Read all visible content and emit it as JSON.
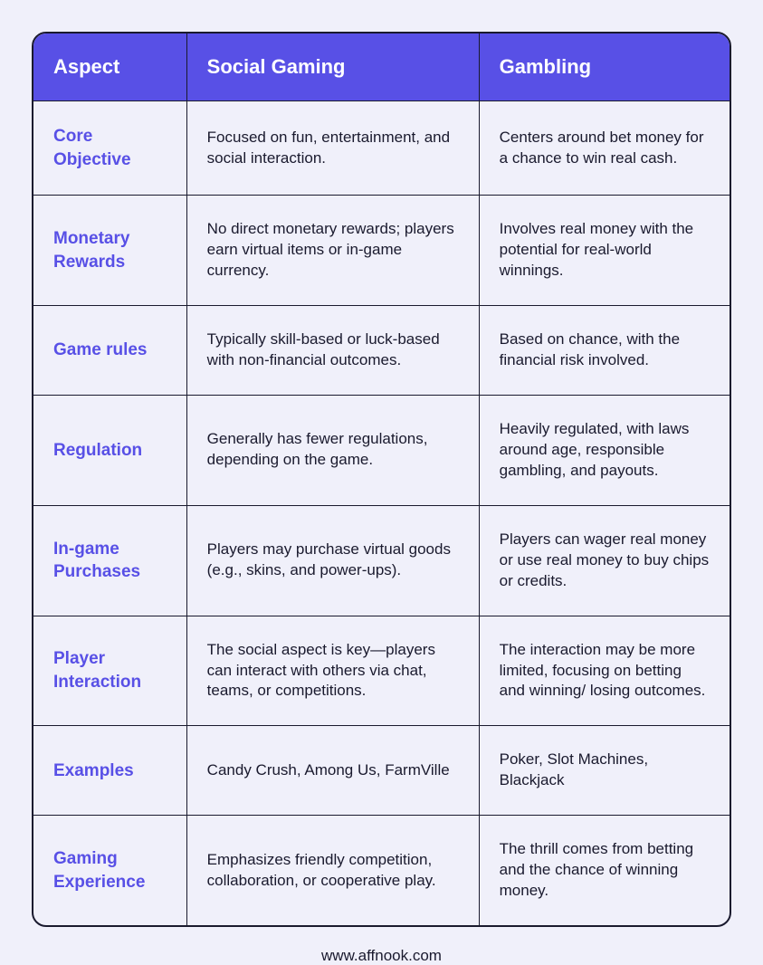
{
  "table": {
    "type": "table",
    "header_bg": "#5850e6",
    "header_text_color": "#ffffff",
    "header_fontsize": 22,
    "border_color": "#1a1a2e",
    "border_radius": 16,
    "page_bg": "#f0f0fa",
    "aspect_color": "#5850e6",
    "aspect_fontsize": 19,
    "cell_text_color": "#1a1a2e",
    "cell_fontsize": 17,
    "columns": [
      {
        "label": "Aspect",
        "width_pct": 22
      },
      {
        "label": "Social Gaming",
        "width_pct": 42
      },
      {
        "label": "Gambling",
        "width_pct": 36
      }
    ],
    "rows": [
      {
        "aspect": "Core Objective",
        "social": "Focused on fun, entertainment, and social interaction.",
        "gambling": "Centers around bet money for a chance to win real cash."
      },
      {
        "aspect": "Monetary Rewards",
        "social": "No direct monetary rewards; players earn virtual items or in-game currency.",
        "gambling": "Involves real money with the potential for real-world winnings."
      },
      {
        "aspect": "Game rules",
        "social": "Typically skill-based or luck-based with non-financial outcomes.",
        "gambling": "Based on chance, with the financial risk involved."
      },
      {
        "aspect": "Regulation",
        "social": "Generally has fewer regulations, depending on the game.",
        "gambling": "Heavily regulated, with laws around age, responsible gambling, and payouts."
      },
      {
        "aspect": "In-game Purchases",
        "social": "Players may purchase virtual goods (e.g., skins, and power-ups).",
        "gambling": "Players can wager real money or use real money to buy chips or credits."
      },
      {
        "aspect": "Player Interaction",
        "social": "The social aspect is key—players can interact with others via chat, teams, or competitions.",
        "gambling": "The interaction may be more limited, focusing on betting and winning/ losing outcomes."
      },
      {
        "aspect": "Examples",
        "social": "Candy Crush, Among Us, FarmVille",
        "gambling": "Poker, Slot Machines, Blackjack"
      },
      {
        "aspect": "Gaming Experience",
        "social": "Emphasizes friendly competition, collaboration, or cooperative play.",
        "gambling": "The thrill comes from betting and the chance of winning money."
      }
    ]
  },
  "footer": {
    "text": "www.affnook.com"
  }
}
